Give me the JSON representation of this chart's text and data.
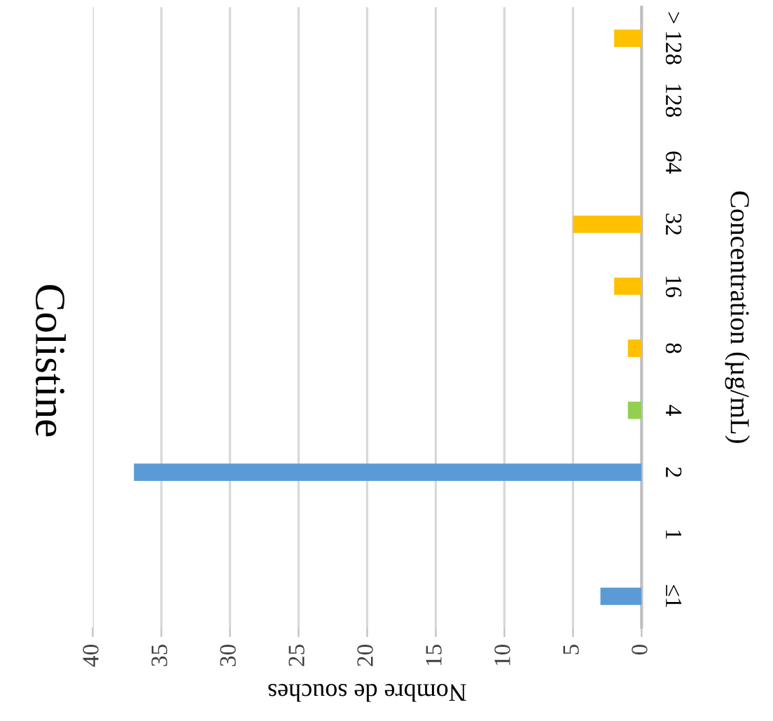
{
  "chart_data": {
    "type": "bar",
    "orientation": "horizontal",
    "title": "Colistine",
    "xlabel": "Nombre de souches",
    "ylabel": "Concentration (µg/mL)",
    "categories": [
      "> 128",
      "128",
      "64",
      "32",
      "16",
      "8",
      "4",
      "2",
      "1",
      "≤1"
    ],
    "values": [
      2,
      0,
      0,
      5,
      2,
      1,
      1,
      37,
      0,
      3
    ],
    "colors": [
      "#ffc000",
      "#ffc000",
      "#ffc000",
      "#ffc000",
      "#ffc000",
      "#ffc000",
      "#92d050",
      "#5b9bd5",
      "#5b9bd5",
      "#5b9bd5"
    ],
    "xlim": [
      40,
      0
    ],
    "xticks": [
      40,
      35,
      30,
      25,
      20,
      15,
      10,
      5,
      0
    ],
    "grid": "x",
    "legend": false
  }
}
